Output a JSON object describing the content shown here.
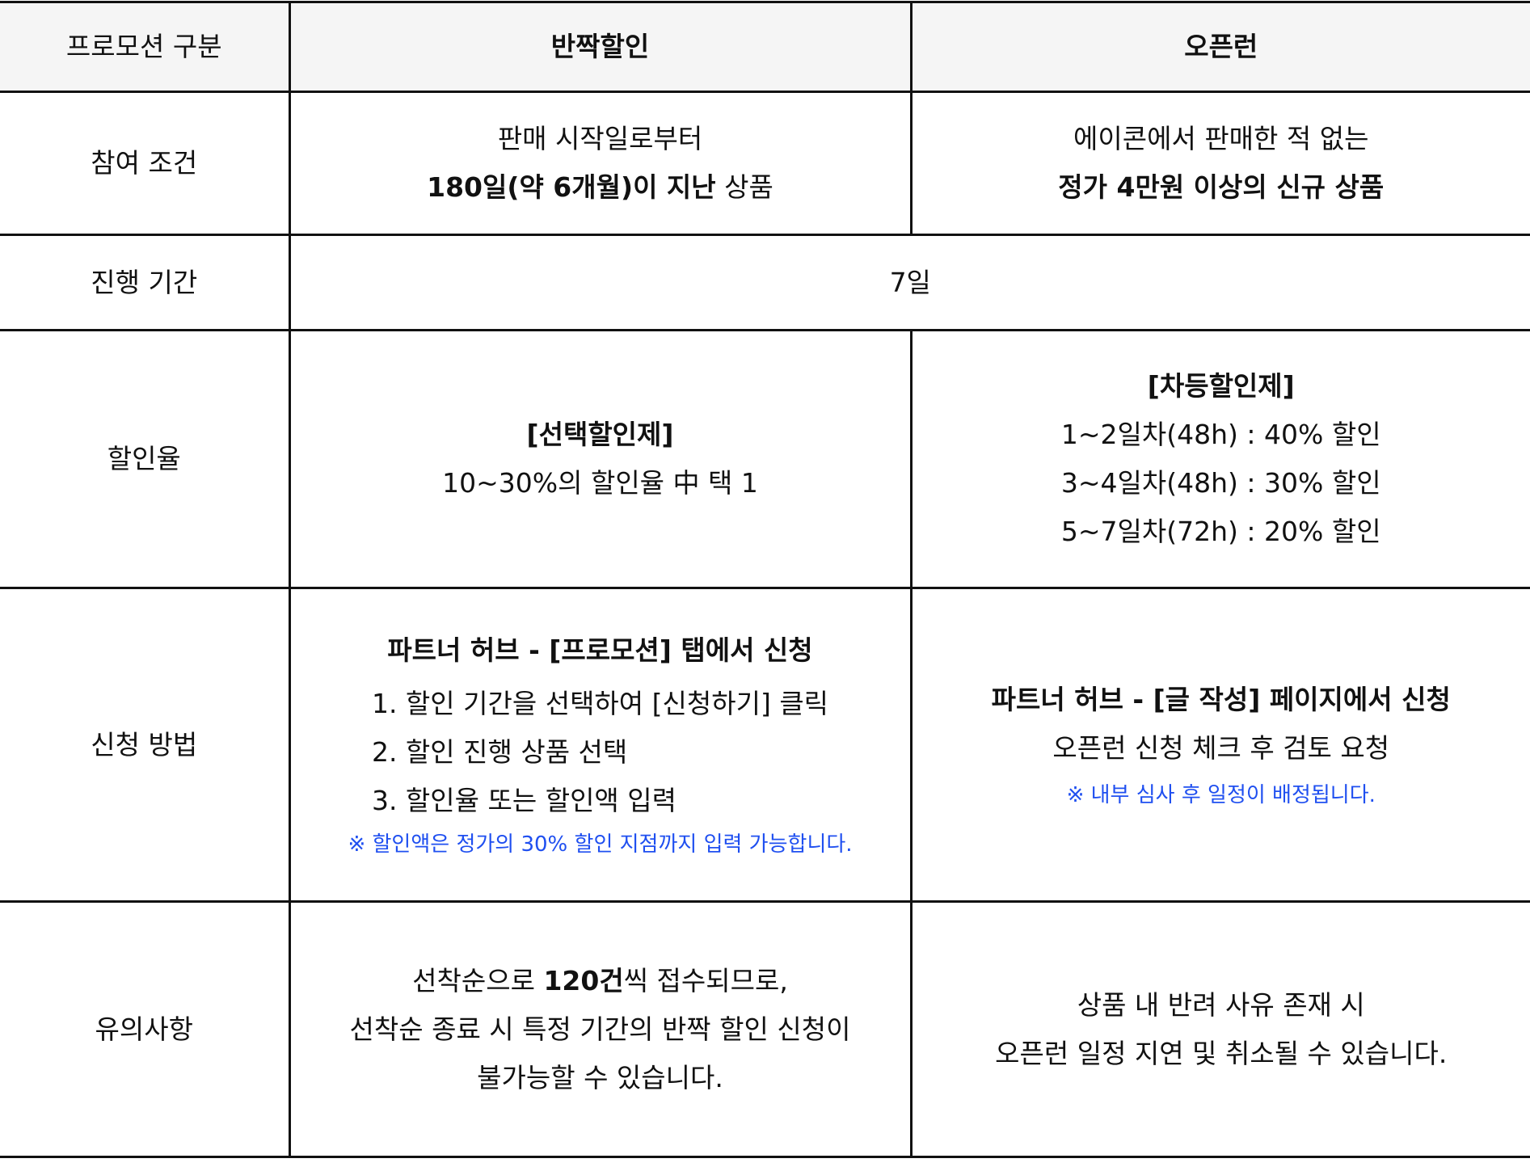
{
  "header": {
    "label": "프로모션 구분",
    "col1": "반짝할인",
    "col2": "오픈런"
  },
  "rows": {
    "condition": {
      "label": "참여 조건",
      "col1": {
        "line1": "판매 시작일로부터",
        "bold": "180일(약 6개월)이 지난",
        "rest": " 상품"
      },
      "col2": {
        "line1": "에이콘에서 판매한 적 없는",
        "bold": "정가 4만원 이상의 신규 상품"
      }
    },
    "period": {
      "label": "진행 기간",
      "value": "7일"
    },
    "rate": {
      "label": "할인율",
      "col1": {
        "title": "[선택할인제]",
        "line": "10~30%의 할인율 中 택 1"
      },
      "col2": {
        "title": "[차등할인제]",
        "lines": [
          "1~2일차(48h) : 40% 할인",
          "3~4일차(48h) : 30% 할인",
          "5~7일차(72h) : 20% 할인"
        ]
      }
    },
    "apply": {
      "label": "신청 방법",
      "col1": {
        "title": "파트너 허브 - [프로모션] 탭에서 신청",
        "steps": [
          "1. 할인 기간을 선택하여 [신청하기] 클릭",
          "2. 할인 진행 상품 선택",
          "3. 할인율 또는 할인액 입력"
        ],
        "note": "※ 할인액은 정가의 30% 할인 지점까지 입력 가능합니다."
      },
      "col2": {
        "title": "파트너 허브 - [글 작성] 페이지에서 신청",
        "line": "오픈런 신청 체크 후 검토 요청",
        "note": "※ 내부 심사 후 일정이 배정됩니다."
      }
    },
    "notice": {
      "label": "유의사항",
      "col1": {
        "pre": "선착순으로 ",
        "bold": "120건",
        "post": "씩 접수되므로,",
        "line2": "선착순 종료 시 특정 기간의 반짝 할인 신청이",
        "line3": "불가능할 수 있습니다."
      },
      "col2": {
        "line1": "상품 내 반려 사유 존재 시",
        "line2": "오픈런 일정 지연 및 취소될 수 있습니다."
      }
    }
  },
  "colors": {
    "note": "#1f4ff0",
    "header_bg": "#f5f5f5",
    "border": "#111111"
  }
}
